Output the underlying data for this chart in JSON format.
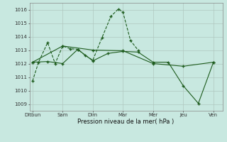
{
  "xlabel": "Pression niveau de la mer( hPa )",
  "bg_color": "#c8e8e0",
  "line_color": "#1e5c1e",
  "grid_color": "#b0c8c0",
  "ylim": [
    1008.5,
    1016.5
  ],
  "xtick_labels": [
    "Ditbun",
    "Sam",
    "Dim",
    "Mar",
    "Mer",
    "Jeu",
    "Ven"
  ],
  "xtick_positions": [
    0,
    1,
    2,
    3,
    4,
    5,
    6
  ],
  "ytick_values": [
    1009,
    1010,
    1011,
    1012,
    1013,
    1014,
    1015,
    1016
  ],
  "series1_x": [
    0.0,
    0.2,
    0.5,
    0.75,
    1.0,
    1.25,
    1.5,
    1.75,
    2.0,
    2.3,
    2.6,
    2.85,
    3.0,
    3.25,
    3.5
  ],
  "series1_y": [
    1010.7,
    1012.1,
    1013.55,
    1012.0,
    1013.3,
    1013.1,
    1013.05,
    1012.6,
    1012.25,
    1013.9,
    1015.5,
    1016.05,
    1015.8,
    1013.7,
    1013.0
  ],
  "series2_x": [
    0.0,
    0.5,
    1.0,
    1.5,
    2.0,
    2.5,
    3.0,
    3.5,
    4.0,
    4.5,
    5.0,
    5.5,
    6.0
  ],
  "series2_y": [
    1012.1,
    1012.15,
    1012.0,
    1013.05,
    1012.2,
    1012.75,
    1012.9,
    1012.85,
    1012.1,
    1012.1,
    1010.35,
    1009.05,
    1012.1
  ],
  "series3_x": [
    0.0,
    1.0,
    2.0,
    3.0,
    4.0,
    5.0,
    6.0
  ],
  "series3_y": [
    1012.1,
    1013.3,
    1013.0,
    1012.95,
    1012.0,
    1011.8,
    1012.1
  ]
}
